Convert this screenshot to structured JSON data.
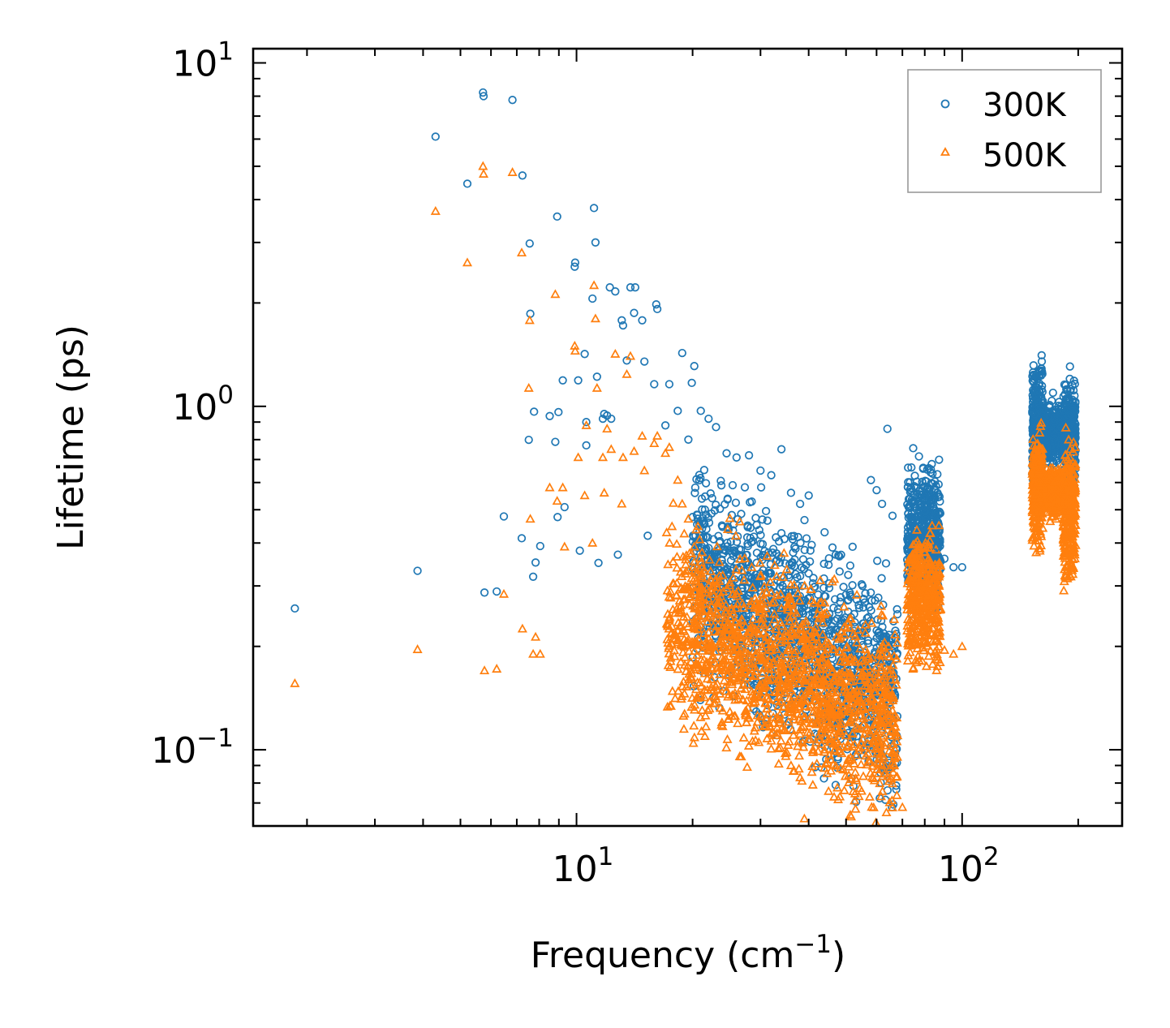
{
  "chart_data": {
    "type": "scatter",
    "title": "",
    "xlabel": "Frequency (cm",
    "xlabel_sup": "−1",
    "xlabel_close": ")",
    "ylabel": "Lifetime (ps)",
    "xscale": "log",
    "yscale": "log",
    "xlim": [
      1.45,
      260
    ],
    "ylim": [
      0.06,
      11
    ],
    "x_ticks": [
      {
        "value": 10,
        "base": "10",
        "exp": "1"
      },
      {
        "value": 100,
        "base": "10",
        "exp": "2"
      }
    ],
    "y_ticks": [
      {
        "value": 0.1,
        "base": "10",
        "exp": "−1"
      },
      {
        "value": 1,
        "base": "10",
        "exp": "0"
      },
      {
        "value": 10,
        "base": "10",
        "exp": "1"
      }
    ],
    "legend_position": "top-right",
    "colors": {
      "s300": "#1f77b4",
      "s500": "#ff7f0e"
    },
    "series": [
      {
        "name": "300K",
        "marker": "circle",
        "color": "#1f77b4",
        "points": [
          [
            1.86,
            0.258
          ],
          [
            3.87,
            0.332
          ],
          [
            4.31,
            6.1
          ],
          [
            5.21,
            4.45
          ],
          [
            5.72,
            8.2
          ],
          [
            5.74,
            8.0
          ],
          [
            5.77,
            0.287
          ],
          [
            6.21,
            0.289
          ],
          [
            6.48,
            0.478
          ],
          [
            6.82,
            7.8
          ],
          [
            7.21,
            0.413
          ],
          [
            7.24,
            4.7
          ],
          [
            7.52,
            0.799
          ],
          [
            7.56,
            2.98
          ],
          [
            7.59,
            1.86
          ],
          [
            7.76,
            0.965
          ],
          [
            7.72,
            0.319
          ],
          [
            7.83,
            0.351
          ],
          [
            8.05,
            0.392
          ],
          [
            8.52,
            0.937
          ],
          [
            8.91,
            3.57
          ],
          [
            8.81,
            0.788
          ],
          [
            8.93,
            0.476
          ],
          [
            8.98,
            0.962
          ],
          [
            9.21,
            1.19
          ],
          [
            9.31,
            0.509
          ],
          [
            9.89,
            2.55
          ],
          [
            9.92,
            2.62
          ],
          [
            10.1,
            1.19
          ],
          [
            10.2,
            0.38
          ],
          [
            10.5,
            1.42
          ],
          [
            10.6,
            0.77
          ],
          [
            10.6,
            0.9
          ],
          [
            11.0,
            2.06
          ],
          [
            11.1,
            3.78
          ],
          [
            11.2,
            3.0
          ],
          [
            11.3,
            1.22
          ],
          [
            11.4,
            0.35
          ],
          [
            11.7,
            0.92
          ],
          [
            11.8,
            0.95
          ],
          [
            12.0,
            0.94
          ],
          [
            12.2,
            2.22
          ],
          [
            12.3,
            0.92
          ],
          [
            12.6,
            2.16
          ],
          [
            12.8,
            0.37
          ],
          [
            13.1,
            1.78
          ],
          [
            13.2,
            1.72
          ],
          [
            13.5,
            1.36
          ],
          [
            13.8,
            2.22
          ],
          [
            14.1,
            1.87
          ],
          [
            14.2,
            2.22
          ],
          [
            14.8,
            1.78
          ],
          [
            15.0,
            1.35
          ],
          [
            15.3,
            0.42
          ],
          [
            15.9,
            1.16
          ],
          [
            16.1,
            1.98
          ],
          [
            16.2,
            1.92
          ],
          [
            17.0,
            0.88
          ],
          [
            17.4,
            1.16
          ],
          [
            18.3,
            0.97
          ],
          [
            18.8,
            1.43
          ],
          [
            19.5,
            0.8
          ],
          [
            19.9,
            1.17
          ],
          [
            20.2,
            1.31
          ],
          [
            21.0,
            0.97
          ],
          [
            22.0,
            0.92
          ],
          [
            23.0,
            0.87
          ],
          [
            24.5,
            0.73
          ],
          [
            26.0,
            0.71
          ],
          [
            28.0,
            0.72
          ],
          [
            30.0,
            0.65
          ],
          [
            32.0,
            0.63
          ],
          [
            34.0,
            0.75
          ],
          [
            36.0,
            0.56
          ],
          [
            38.0,
            0.52
          ],
          [
            40.0,
            0.55
          ],
          [
            44.0,
            0.43
          ],
          [
            47.0,
            0.37
          ],
          [
            52.0,
            0.39
          ],
          [
            58.0,
            0.61
          ],
          [
            60.0,
            0.57
          ],
          [
            62.0,
            0.52
          ],
          [
            64.0,
            0.86
          ],
          [
            66.0,
            0.48
          ],
          [
            86.0,
            0.39
          ],
          [
            90.0,
            0.36
          ],
          [
            95.0,
            0.34
          ],
          [
            100.0,
            0.34
          ]
        ]
      },
      {
        "name": "500K",
        "marker": "triangle",
        "color": "#ff7f0e",
        "points": [
          [
            1.86,
            0.156
          ],
          [
            3.87,
            0.196
          ],
          [
            4.31,
            3.7
          ],
          [
            5.21,
            2.62
          ],
          [
            5.72,
            5.0
          ],
          [
            5.74,
            4.75
          ],
          [
            5.77,
            0.17
          ],
          [
            6.21,
            0.172
          ],
          [
            6.48,
            0.284
          ],
          [
            6.82,
            4.8
          ],
          [
            7.21,
            2.8
          ],
          [
            7.24,
            0.225
          ],
          [
            7.52,
            1.13
          ],
          [
            7.56,
            1.78
          ],
          [
            7.59,
            0.47
          ],
          [
            7.72,
            0.19
          ],
          [
            7.83,
            0.213
          ],
          [
            8.05,
            0.19
          ],
          [
            8.52,
            0.58
          ],
          [
            8.81,
            2.12
          ],
          [
            8.91,
            0.53
          ],
          [
            9.21,
            0.58
          ],
          [
            9.31,
            0.39
          ],
          [
            9.89,
            1.5
          ],
          [
            9.92,
            1.45
          ],
          [
            10.1,
            0.71
          ],
          [
            10.5,
            0.55
          ],
          [
            10.6,
            0.88
          ],
          [
            11.0,
            0.4
          ],
          [
            11.1,
            2.25
          ],
          [
            11.2,
            1.8
          ],
          [
            11.3,
            1.13
          ],
          [
            11.7,
            0.71
          ],
          [
            11.8,
            0.56
          ],
          [
            12.0,
            0.86
          ],
          [
            12.3,
            0.75
          ],
          [
            12.6,
            1.42
          ],
          [
            13.1,
            0.52
          ],
          [
            13.2,
            0.71
          ],
          [
            13.5,
            1.24
          ],
          [
            13.8,
            1.4
          ],
          [
            14.1,
            0.74
          ],
          [
            14.8,
            0.82
          ],
          [
            15.0,
            0.65
          ],
          [
            15.9,
            0.78
          ],
          [
            16.2,
            0.82
          ],
          [
            17.0,
            0.73
          ],
          [
            17.4,
            0.76
          ],
          [
            18.3,
            0.61
          ],
          [
            18.8,
            0.52
          ],
          [
            19.5,
            0.47
          ],
          [
            20.2,
            0.39
          ],
          [
            21.0,
            0.26
          ],
          [
            22.0,
            0.22
          ],
          [
            24.0,
            0.17
          ],
          [
            27.0,
            0.14
          ],
          [
            30.0,
            0.125
          ],
          [
            34.0,
            0.115
          ],
          [
            36.0,
            0.09
          ],
          [
            38.0,
            0.083
          ],
          [
            39.0,
            0.063
          ],
          [
            41.0,
            0.079
          ],
          [
            44.0,
            0.1
          ],
          [
            46.0,
            0.11
          ],
          [
            50.0,
            0.11
          ],
          [
            56.0,
            0.17
          ],
          [
            62.0,
            0.16
          ],
          [
            66.0,
            0.13
          ],
          [
            68.0,
            0.11
          ],
          [
            70.0,
            0.068
          ],
          [
            86.0,
            0.22
          ],
          [
            90.0,
            0.195
          ],
          [
            95.0,
            0.19
          ],
          [
            100.0,
            0.2
          ]
        ]
      }
    ],
    "bands": [
      {
        "series": "300K",
        "x": [
          20,
          68
        ],
        "y": [
          0.13,
          0.9
        ],
        "count": 1500,
        "slope": -0.75
      },
      {
        "series": "300K",
        "x": [
          72,
          88
        ],
        "y": [
          0.22,
          0.78
        ],
        "count": 500,
        "slope": 0
      },
      {
        "series": "300K",
        "x": [
          152,
          162
        ],
        "y": [
          0.52,
          1.55
        ],
        "count": 300,
        "slope": 0
      },
      {
        "series": "300K",
        "x": [
          165,
          182
        ],
        "y": [
          0.62,
          1.12
        ],
        "count": 260,
        "slope": 0
      },
      {
        "series": "300K",
        "x": [
          183,
          197
        ],
        "y": [
          0.45,
          1.42
        ],
        "count": 300,
        "slope": 0
      },
      {
        "series": "500K",
        "x": [
          17,
          68
        ],
        "y": [
          0.1,
          0.62
        ],
        "count": 1500,
        "slope": -0.55
      },
      {
        "series": "500K",
        "x": [
          72,
          88
        ],
        "y": [
          0.15,
          0.5
        ],
        "count": 420,
        "slope": 0
      },
      {
        "series": "500K",
        "x": [
          152,
          162
        ],
        "y": [
          0.34,
          0.95
        ],
        "count": 280,
        "slope": 0
      },
      {
        "series": "500K",
        "x": [
          165,
          182
        ],
        "y": [
          0.45,
          0.7
        ],
        "count": 240,
        "slope": 0
      },
      {
        "series": "500K",
        "x": [
          183,
          197
        ],
        "y": [
          0.25,
          0.93
        ],
        "count": 280,
        "slope": 0
      }
    ]
  }
}
